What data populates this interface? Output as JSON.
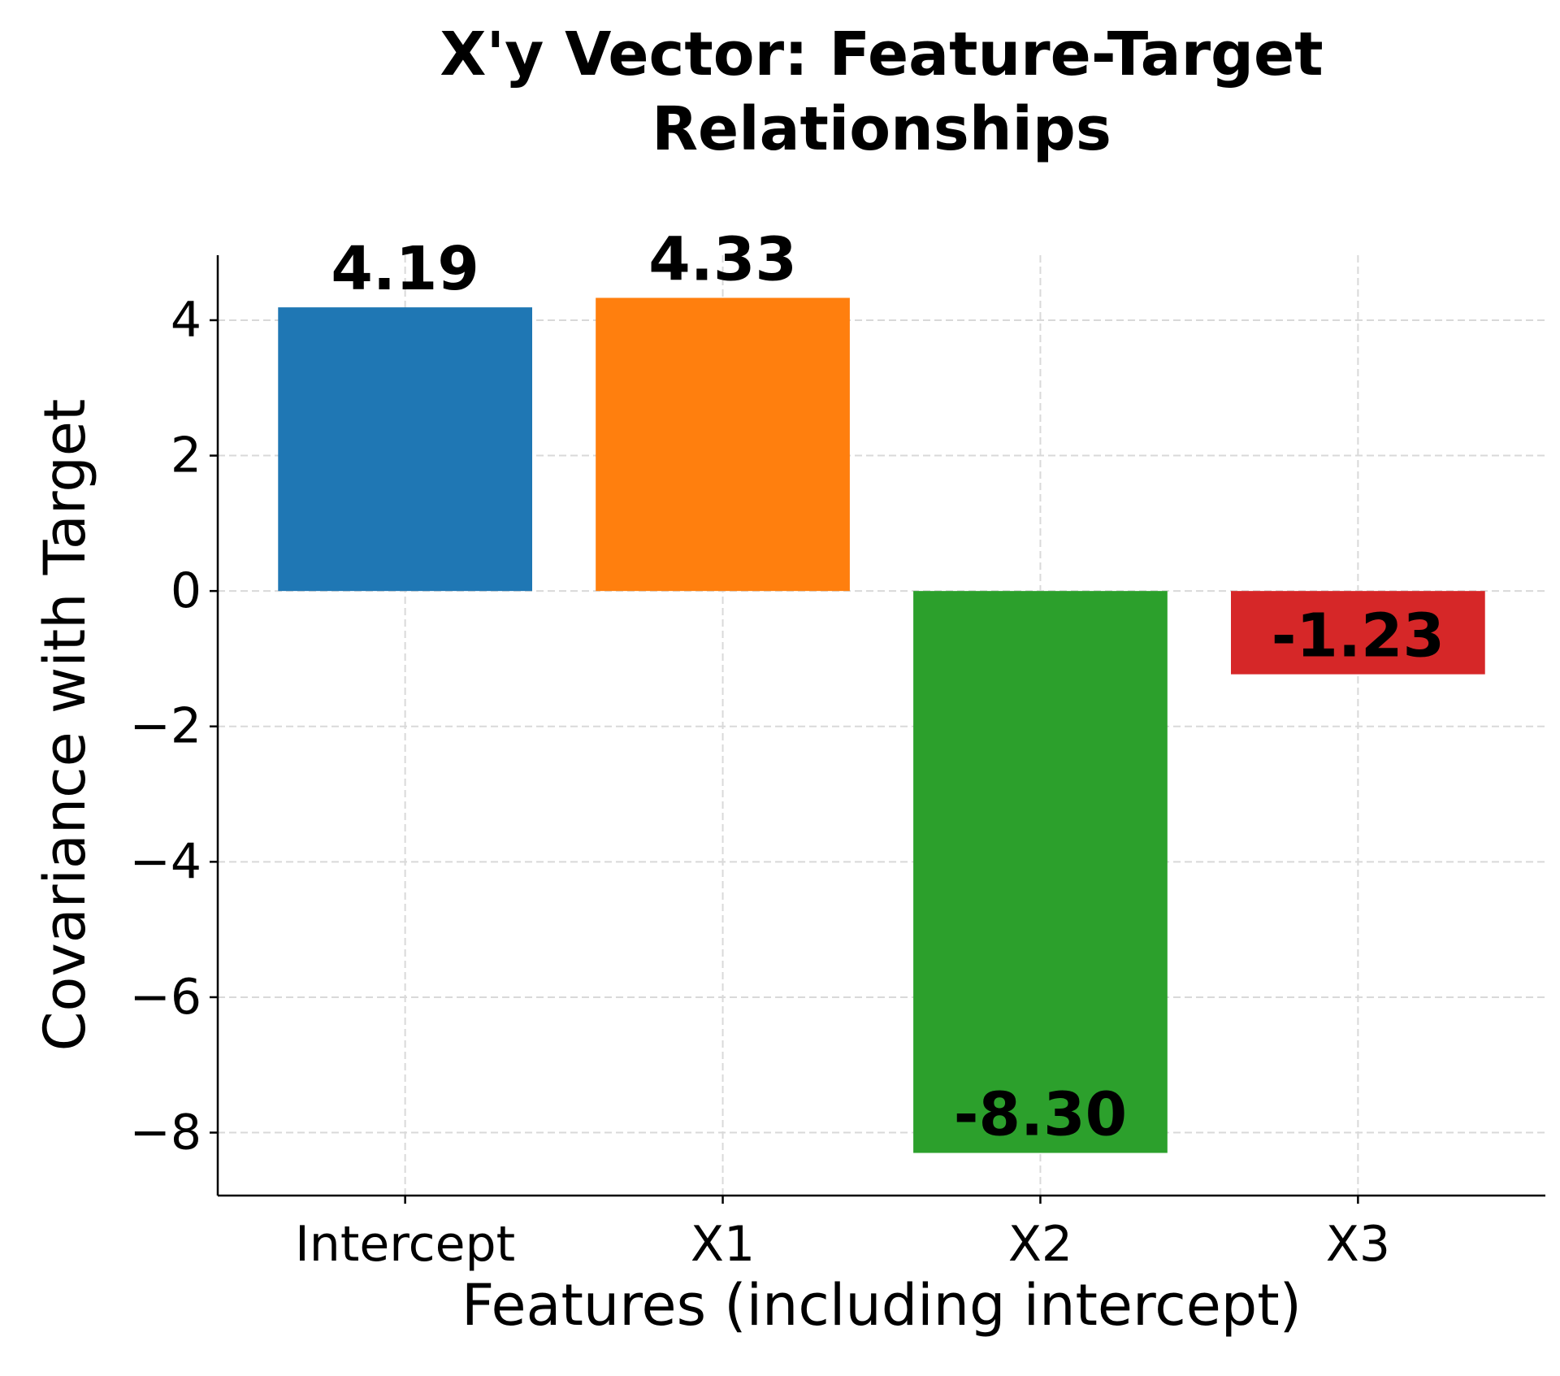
{
  "chart_data": {
    "type": "bar",
    "title": "X'y Vector: Feature-Target\nRelationships",
    "xlabel": "Features (including intercept)",
    "ylabel": "Covariance with Target",
    "categories": [
      "Intercept",
      "X1",
      "X2",
      "X3"
    ],
    "values": [
      4.19,
      4.33,
      -8.3,
      -1.23
    ],
    "value_labels": [
      "4.19",
      "4.33",
      "-8.30",
      "-1.23"
    ],
    "colors": [
      "#1f77b4",
      "#ff7f0e",
      "#2ca02c",
      "#d62728"
    ],
    "ylim": [
      -8.93,
      4.96
    ],
    "yticks": [
      {
        "value": -8,
        "label": "−8"
      },
      {
        "value": -6,
        "label": "−6"
      },
      {
        "value": -4,
        "label": "−4"
      },
      {
        "value": -2,
        "label": "−2"
      },
      0,
      2,
      4
    ],
    "grid": true
  }
}
